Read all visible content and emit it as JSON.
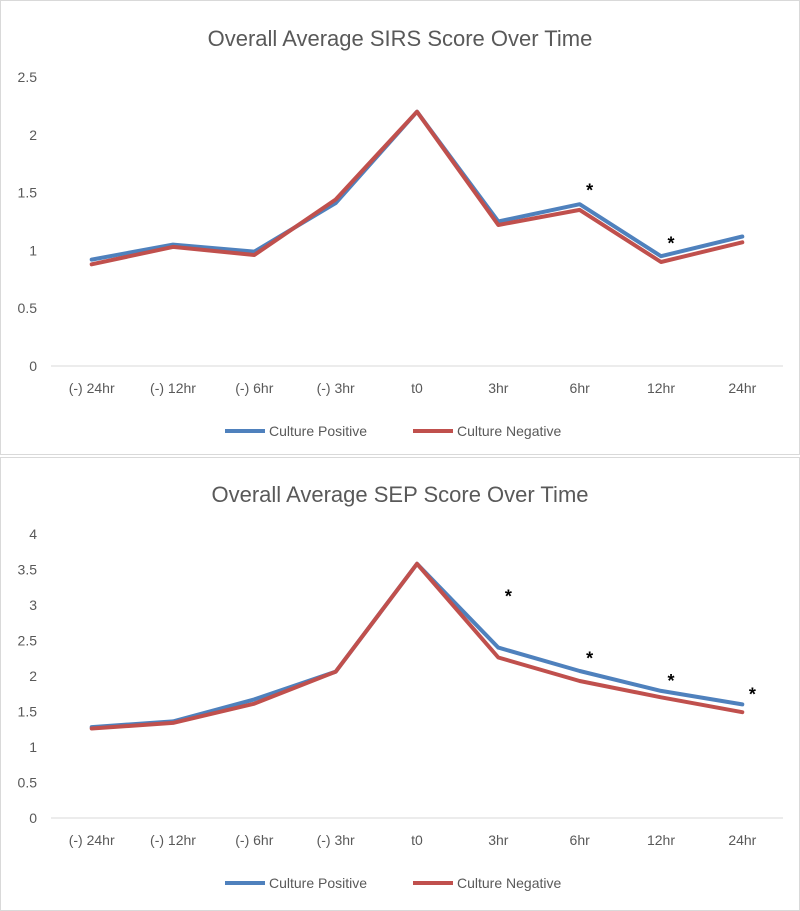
{
  "charts": [
    {
      "chart_data": {
        "type": "line",
        "title": "Overall Average SIRS Score Over Time",
        "categories": [
          "(-) 24hr",
          "(-) 12hr",
          "(-) 6hr",
          "(-) 3hr",
          "t0",
          "3hr",
          "6hr",
          "12hr",
          "24hr"
        ],
        "series": [
          {
            "name": "Culture Positive",
            "color": "#4f81bd",
            "values": [
              0.92,
              1.05,
              0.99,
              1.41,
              2.2,
              1.25,
              1.4,
              0.95,
              1.12
            ]
          },
          {
            "name": "Culture Negative",
            "color": "#c0504d",
            "values": [
              0.88,
              1.03,
              0.96,
              1.44,
              2.2,
              1.22,
              1.35,
              0.9,
              1.07
            ]
          }
        ],
        "significance_marks": [
          {
            "category": "6hr",
            "label": "*",
            "y": 1.52
          },
          {
            "category": "12hr",
            "label": "*",
            "y": 1.06
          }
        ],
        "yticks": [
          "0",
          "0.5",
          "1",
          "1.5",
          "2",
          "2.5"
        ],
        "ylim": [
          0,
          2.5
        ],
        "grid": false,
        "legend": "bottom"
      }
    },
    {
      "chart_data": {
        "type": "line",
        "title": "Overall Average SEP Score Over Time",
        "categories": [
          "(-) 24hr",
          "(-) 12hr",
          "(-) 6hr",
          "(-) 3hr",
          "t0",
          "3hr",
          "6hr",
          "12hr",
          "24hr"
        ],
        "series": [
          {
            "name": "Culture Positive",
            "color": "#4f81bd",
            "values": [
              1.28,
              1.36,
              1.67,
              2.06,
              3.58,
              2.4,
              2.07,
              1.79,
              1.6
            ]
          },
          {
            "name": "Culture Negative",
            "color": "#c0504d",
            "values": [
              1.26,
              1.34,
              1.61,
              2.06,
              3.58,
              2.26,
              1.93,
              1.7,
              1.49
            ]
          }
        ],
        "significance_marks": [
          {
            "category": "3hr",
            "label": "*",
            "y": 3.12
          },
          {
            "category": "6hr",
            "label": "*",
            "y": 2.25
          },
          {
            "category": "12hr",
            "label": "*",
            "y": 1.93
          },
          {
            "category": "24hr",
            "label": "*",
            "y": 1.74
          }
        ],
        "yticks": [
          "0",
          "0.5",
          "1",
          "1.5",
          "2",
          "2.5",
          "3",
          "3.5",
          "4"
        ],
        "ylim": [
          0,
          4
        ],
        "grid": false,
        "legend": "bottom"
      }
    }
  ]
}
